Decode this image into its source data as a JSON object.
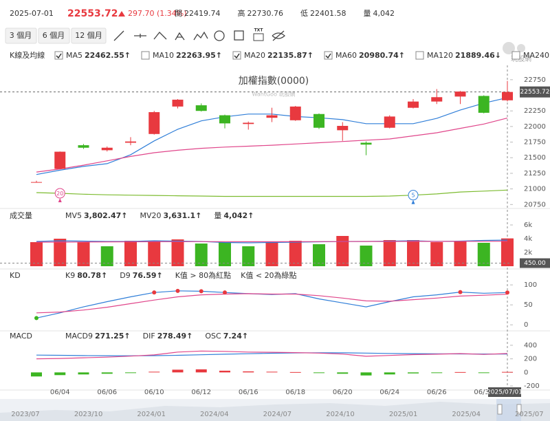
{
  "header": {
    "date": "2025-07-01",
    "price": "22553.72",
    "change": "297.70 (1.34%)",
    "stats": [
      {
        "label": "開",
        "value": "22419.74"
      },
      {
        "label": "高",
        "value": "22730.76"
      },
      {
        "label": "低",
        "value": "22401.58"
      },
      {
        "label": "量",
        "value": "4,042"
      }
    ]
  },
  "toolbar": {
    "ranges": [
      "3 個月",
      "6 個月",
      "12 個月"
    ],
    "text_tool": "TXT"
  },
  "logo": "玩股網",
  "chart_data": [
    {
      "type": "candlestick",
      "title": "加權指數(0000)",
      "watermark": "WantGoo 玩股網",
      "legend_title": "K線及均線",
      "up_color": "#e8393f",
      "down_color": "#3cb522",
      "open": [
        21110,
        21321,
        21700,
        21620,
        21740,
        21880,
        22320,
        22340,
        22180,
        22040,
        22140,
        22100,
        22200,
        21940,
        21740,
        21980,
        22300,
        22400,
        22480,
        22490,
        22419.74
      ],
      "high": [
        21130,
        21600,
        21720,
        21680,
        21830,
        22250,
        22440,
        22370,
        22190,
        22080,
        22300,
        22330,
        22210,
        22070,
        21760,
        22180,
        22440,
        22600,
        22570,
        22500,
        22730.76
      ],
      "low": [
        21100,
        21320,
        21640,
        21600,
        21700,
        21870,
        22290,
        22240,
        21970,
        21950,
        22070,
        22090,
        21960,
        21770,
        21540,
        21970,
        22290,
        22360,
        22360,
        22210,
        22401.58
      ],
      "close": [
        21110,
        21596,
        21660,
        21660,
        21760,
        22230,
        22430,
        22250,
        22050,
        22060,
        22180,
        22320,
        21980,
        22010,
        21710,
        22160,
        22400,
        22470,
        22560,
        22220,
        22553.72
      ],
      "series": [
        {
          "name": "MA5",
          "color": "#2f7ed8",
          "checked": true,
          "legend_value": "22462.55↑",
          "values": [
            21230,
            21300,
            21360,
            21405,
            21548,
            21770,
            21956,
            22090,
            22155,
            22200,
            22200,
            22160,
            22140,
            22110,
            22045,
            22045,
            22045,
            22130,
            22265,
            22375,
            22462.55
          ]
        },
        {
          "name": "MA10",
          "color": "#e8a317",
          "checked": false,
          "legend_value": "22263.95↑"
        },
        {
          "name": "MA20",
          "color": "#e0458a",
          "checked": true,
          "legend_value": "22135.87↑",
          "values": [
            21270,
            21320,
            21380,
            21450,
            21520,
            21580,
            21620,
            21650,
            21670,
            21685,
            21700,
            21720,
            21740,
            21760,
            21780,
            21800,
            21850,
            21900,
            21970,
            22040,
            22135.87
          ]
        },
        {
          "name": "MA60",
          "color": "#7cbb2f",
          "checked": true,
          "legend_value": "20980.74↑",
          "values": [
            20940,
            20930,
            20915,
            20905,
            20900,
            20895,
            20890,
            20885,
            20880,
            20880,
            20880,
            20880,
            20880,
            20880,
            20880,
            20885,
            20900,
            20920,
            20950,
            20965,
            20980.74
          ]
        },
        {
          "name": "MA120",
          "color": "#8a5cd1",
          "checked": false,
          "legend_value": "21889.46↓"
        },
        {
          "name": "MA240",
          "color": "#e8632b",
          "checked": false,
          "legend_value": "22261.68↓"
        }
      ],
      "last_price": {
        "value": 22553.72,
        "label": "22553.72"
      },
      "annotations": [
        {
          "label": "20",
          "color": "#e0458a"
        },
        {
          "label": "5",
          "color": "#2f7ed8"
        }
      ],
      "ylim": [
        20720,
        22980
      ],
      "yticks": [
        20750,
        21000,
        21250,
        21500,
        21750,
        22000,
        22250,
        22500,
        22750
      ]
    },
    {
      "type": "bar",
      "legend_title": "成交量",
      "values": [
        3500,
        4000,
        3500,
        2900,
        3700,
        3700,
        3900,
        3300,
        3500,
        2900,
        3400,
        3700,
        3200,
        4400,
        3000,
        3800,
        3800,
        3500,
        3600,
        3400,
        4042
      ],
      "colors": [
        "#e8393f",
        "#e8393f",
        "#e8393f",
        "#3cb522",
        "#e8393f",
        "#e8393f",
        "#e8393f",
        "#3cb522",
        "#3cb522",
        "#3cb522",
        "#e8393f",
        "#e8393f",
        "#3cb522",
        "#e8393f",
        "#3cb522",
        "#e8393f",
        "#e8393f",
        "#e8393f",
        "#e8393f",
        "#3cb522",
        "#e8393f"
      ],
      "series": [
        {
          "name": "MV5",
          "color": "#2f7ed8",
          "legend_value": "3,802.47↑",
          "values": [
            3600,
            3700,
            3650,
            3600,
            3600,
            3700,
            3650,
            3600,
            3450,
            3400,
            3450,
            3500,
            3550,
            3600,
            3600,
            3650,
            3700,
            3600,
            3650,
            3750,
            3802.47
          ]
        },
        {
          "name": "MV20",
          "color": "#e0458a",
          "legend_value": "3,631.1↑",
          "values": [
            3500,
            3500,
            3520,
            3540,
            3550,
            3560,
            3570,
            3580,
            3570,
            3560,
            3560,
            3570,
            3580,
            3590,
            3600,
            3600,
            3610,
            3610,
            3620,
            3625,
            3631.1
          ]
        }
      ],
      "legend_extra": {
        "name": "量",
        "value": "4,042↑"
      },
      "cursor": {
        "value": 450,
        "label": "450.00"
      },
      "ylim": [
        0,
        6500
      ],
      "yticks": [
        {
          "value": 2000,
          "label": "2k"
        },
        {
          "value": 4000,
          "label": "4k"
        },
        {
          "value": 6000,
          "label": "6k"
        }
      ]
    },
    {
      "type": "line",
      "legend_title": "KD",
      "series": [
        {
          "name": "K9",
          "color": "#2f7ed8",
          "legend_value": "80.78↑",
          "values": [
            17,
            30,
            45,
            58,
            70,
            81,
            85,
            84,
            81,
            78,
            76,
            78,
            65,
            55,
            45,
            58,
            70,
            75,
            82,
            79,
            80.78
          ]
        },
        {
          "name": "D9",
          "color": "#e0458a",
          "legend_value": "76.59↑",
          "values": [
            30,
            32,
            37,
            44,
            53,
            62,
            70,
            75,
            77,
            78,
            77,
            77,
            73,
            67,
            60,
            59,
            63,
            67,
            72,
            74,
            76.59
          ]
        }
      ],
      "markers": [
        {
          "value": 80,
          "above": true,
          "color": "#e8393f",
          "label": "K值 > 80為紅點"
        },
        {
          "value": 20,
          "above": false,
          "color": "#3cb522",
          "label": "K值 < 20為綠點"
        }
      ],
      "ylim": [
        -10,
        114
      ],
      "yticks": [
        0,
        50,
        100
      ]
    },
    {
      "type": "bar",
      "legend_title": "MACD",
      "name": "OSC",
      "legend_value": "7.24↑",
      "up_color": "#e8393f",
      "down_color": "#3cb522",
      "values": [
        -60,
        -40,
        -30,
        -20,
        -5,
        10,
        40,
        45,
        25,
        15,
        10,
        5,
        -5,
        -20,
        -45,
        -30,
        -15,
        -5,
        5,
        -5,
        7.24
      ],
      "series": [
        {
          "name": "MACD9",
          "color": "#2f7ed8",
          "legend_value": "271.25↑",
          "values": [
            255,
            252,
            248,
            246,
            245,
            247,
            252,
            260,
            268,
            275,
            282,
            287,
            289,
            288,
            284,
            279,
            276,
            273,
            272,
            271,
            271.25
          ]
        },
        {
          "name": "DIF",
          "color": "#e0458a",
          "legend_value": "278.49↑",
          "values": [
            200,
            205,
            215,
            225,
            240,
            258,
            300,
            315,
            310,
            300,
            297,
            292,
            284,
            270,
            238,
            250,
            262,
            268,
            277,
            265,
            278.49
          ]
        }
      ],
      "categories": [
        null,
        "06/04",
        null,
        "06/06",
        null,
        "06/10",
        null,
        "06/12",
        null,
        "06/16",
        null,
        "06/18",
        null,
        "06/20",
        null,
        "06/24",
        null,
        "06/26",
        null,
        "06/30",
        "2025/07/01"
      ],
      "ylim": [
        -250,
        470
      ],
      "yticks": [
        -200,
        0,
        200,
        400
      ]
    }
  ],
  "navigator": {
    "labels": [
      "2023/07",
      "2023/10",
      "2024/01",
      "2024/04",
      "2024/07",
      "2024/10",
      "2025/01",
      "2025/04",
      "2025/07"
    ]
  }
}
